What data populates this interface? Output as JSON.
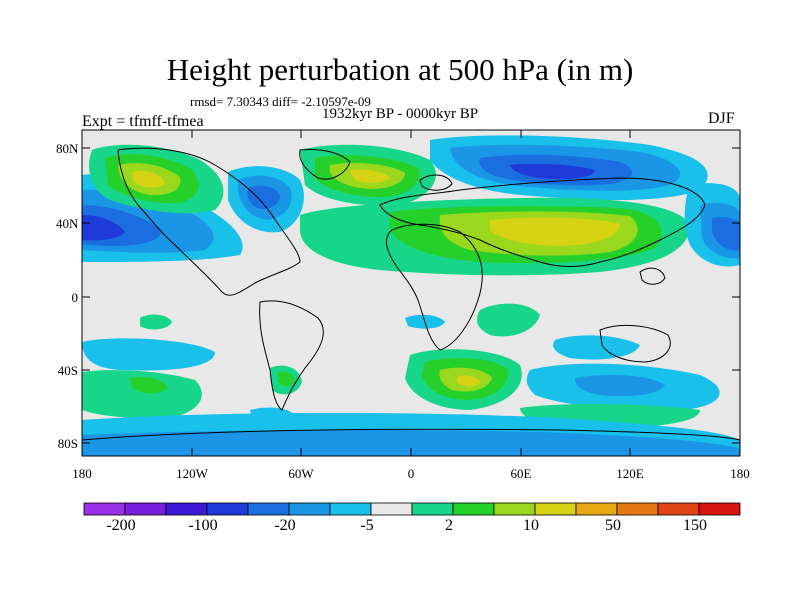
{
  "title": "Height perturbation at 500 hPa (in m)",
  "stats": "rmsd= 7.30343 diff= -2.10597e-09",
  "period": "1932kyr BP - 0000kyr BP",
  "experiment": "Expt = tfmff-tfmea",
  "season": "DJF",
  "lat_labels": [
    "80N",
    "40N",
    "0",
    "40S",
    "80S"
  ],
  "lon_labels": [
    "180",
    "120W",
    "60W",
    "0",
    "60E",
    "120E",
    "180"
  ],
  "colorbar": {
    "labels": [
      "-200",
      "-100",
      "-20",
      "-5",
      "2",
      "10",
      "50",
      "150"
    ],
    "colors": [
      "#9b30e8",
      "#7a1ee0",
      "#3d1ad6",
      "#1e3ad8",
      "#1a6ee0",
      "#1b96e6",
      "#18c0ea",
      "#e8e8e8",
      "#17d68a",
      "#25d02a",
      "#9ad81e",
      "#d8d214",
      "#e8a814",
      "#e67814",
      "#e04414",
      "#d81410"
    ]
  },
  "field_colors": {
    "neg_strong": "#1e3ad8",
    "neg_mid": "#1a6ee0",
    "neg_light": "#1b96e6",
    "neg_pale": "#18c0ea",
    "neutral": "#e8e8e8",
    "pos_pale": "#17d68a",
    "pos_mid": "#25d02a",
    "pos_light": "#9ad81e",
    "pos_strong": "#d8d214"
  }
}
